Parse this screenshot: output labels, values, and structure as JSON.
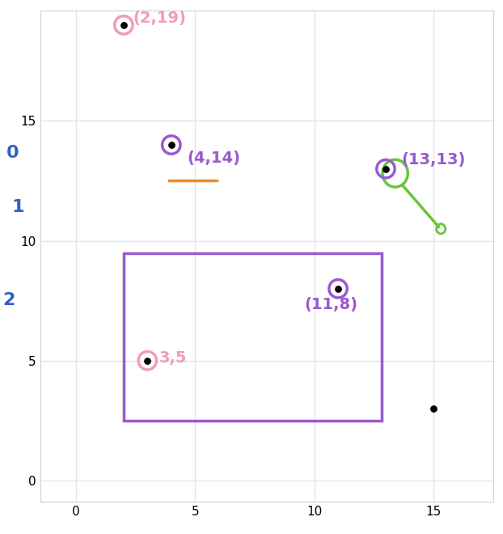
{
  "chart_data": {
    "type": "scatter",
    "points": [
      {
        "x": 2,
        "y": 19,
        "label": "(2,19)",
        "color": "#f29ac0"
      },
      {
        "x": 4,
        "y": 14,
        "label": "(4,14)",
        "color": "#9b59d0"
      },
      {
        "x": 13,
        "y": 13,
        "label": "(13,13)",
        "color": "#9b59d0"
      },
      {
        "x": 11,
        "y": 8,
        "label": "(11,8)",
        "color": "#9b59d0"
      },
      {
        "x": 3,
        "y": 5,
        "label": "3,5",
        "color": "#f29ac0"
      },
      {
        "x": 15,
        "y": 3,
        "color": "#000000"
      }
    ],
    "annotations": [
      {
        "text": "0",
        "color": "#2a63c4"
      },
      {
        "text": "1",
        "color": "#2a63c4"
      },
      {
        "text": "2",
        "color": "#2a63c4"
      }
    ],
    "xlim": [
      -1.5,
      17.5
    ],
    "ylim": [
      -0.9,
      19.6
    ],
    "xticks": [
      0,
      5,
      10,
      15
    ],
    "yticks": [
      0,
      5,
      10,
      15
    ],
    "grid": true
  }
}
